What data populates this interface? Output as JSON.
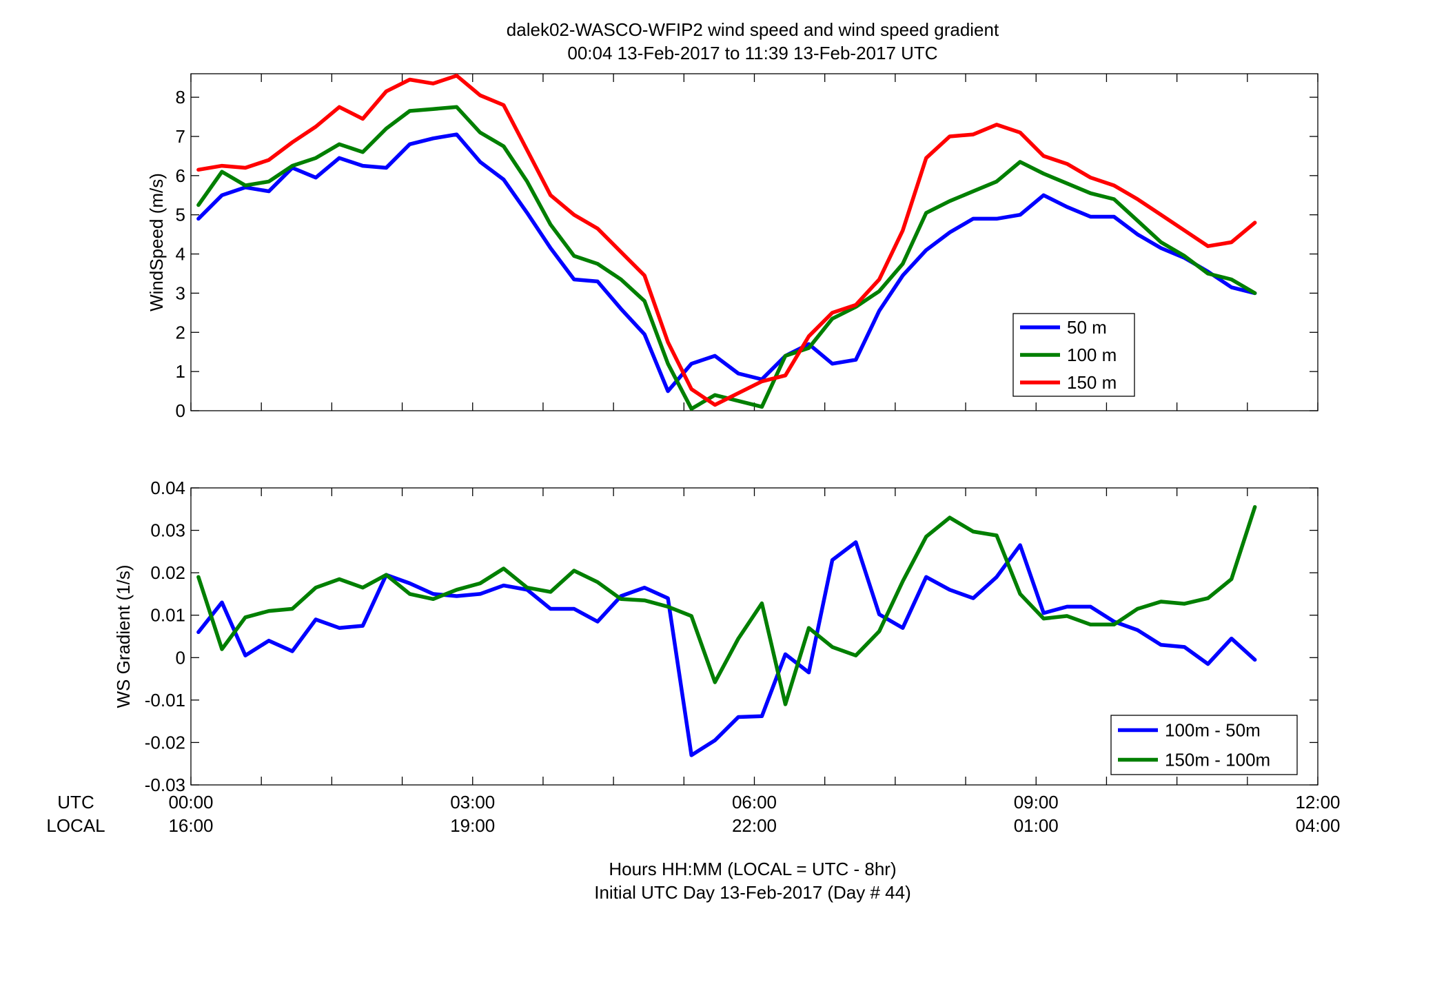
{
  "title_line1": "dalek02-WASCO-WFIP2  wind speed and wind speed gradient",
  "title_line2": "00:04 13-Feb-2017 to 11:39 13-Feb-2017  UTC",
  "row_label_utc": "UTC",
  "row_label_local": "LOCAL",
  "xlabel_line1": "Hours HH:MM  (LOCAL = UTC - 8hr)",
  "xlabel_line2": "Initial UTC Day 13-Feb-2017 (Day # 44)",
  "x_ticks_utc": [
    "00:00",
    "03:00",
    "06:00",
    "09:00",
    "12:00"
  ],
  "x_ticks_local": [
    "16:00",
    "19:00",
    "22:00",
    "01:00",
    "04:00"
  ],
  "chart_data": [
    {
      "type": "line",
      "xunit": "hours UTC",
      "xlim": [
        0,
        12
      ],
      "ylim": [
        0,
        8.6
      ],
      "yticks": [
        0,
        1,
        2,
        3,
        4,
        5,
        6,
        7,
        8
      ],
      "ytick_labels": [
        "0",
        "1",
        "2",
        "3",
        "4",
        "5",
        "6",
        "7",
        "8"
      ],
      "ylabel": "WindSpeed (m/s)",
      "legend_position": "right",
      "x": [
        0.08,
        0.33,
        0.58,
        0.83,
        1.08,
        1.33,
        1.58,
        1.83,
        2.08,
        2.33,
        2.58,
        2.83,
        3.08,
        3.33,
        3.58,
        3.83,
        4.08,
        4.33,
        4.58,
        4.83,
        5.08,
        5.33,
        5.58,
        5.83,
        6.08,
        6.33,
        6.58,
        6.83,
        7.08,
        7.33,
        7.58,
        7.83,
        8.08,
        8.33,
        8.58,
        8.83,
        9.08,
        9.33,
        9.58,
        9.83,
        10.08,
        10.33,
        10.58,
        10.83,
        11.08,
        11.33
      ],
      "series": [
        {
          "name": "50 m",
          "color": "#0000ff",
          "values": [
            4.9,
            5.5,
            5.7,
            5.6,
            6.2,
            5.95,
            6.45,
            6.25,
            6.2,
            6.8,
            6.95,
            7.05,
            6.35,
            5.9,
            5.05,
            4.15,
            3.35,
            3.3,
            2.6,
            1.95,
            0.5,
            1.2,
            1.4,
            0.95,
            0.8,
            1.4,
            1.7,
            1.2,
            1.3,
            2.55,
            3.45,
            4.1,
            4.55,
            4.9,
            4.9,
            5.0,
            5.5,
            5.2,
            4.95,
            4.95,
            4.5,
            4.15,
            3.9,
            3.55,
            3.15,
            3.0
          ]
        },
        {
          "name": "100 m",
          "color": "#007f00",
          "values": [
            5.25,
            6.1,
            5.75,
            5.85,
            6.25,
            6.45,
            6.8,
            6.6,
            7.2,
            7.65,
            7.7,
            7.75,
            7.1,
            6.75,
            5.85,
            4.75,
            3.95,
            3.75,
            3.35,
            2.8,
            1.2,
            0.05,
            0.4,
            0.25,
            0.1,
            1.4,
            1.6,
            2.35,
            2.65,
            3.05,
            3.75,
            5.05,
            5.35,
            5.6,
            5.85,
            6.35,
            6.05,
            5.8,
            5.55,
            5.4,
            4.85,
            4.3,
            3.95,
            3.5,
            3.35,
            3.0
          ]
        },
        {
          "name": "150 m",
          "color": "#ff0000",
          "values": [
            6.15,
            6.25,
            6.2,
            6.4,
            6.85,
            7.25,
            7.75,
            7.45,
            8.15,
            8.45,
            8.35,
            8.55,
            8.05,
            7.8,
            6.65,
            5.5,
            5.0,
            4.65,
            4.05,
            3.45,
            1.75,
            0.55,
            0.15,
            0.45,
            0.75,
            0.9,
            1.9,
            2.5,
            2.7,
            3.35,
            4.6,
            6.45,
            7.0,
            7.05,
            7.3,
            7.1,
            6.5,
            6.3,
            5.95,
            5.75,
            5.4,
            5.0,
            4.6,
            4.2,
            4.3,
            4.8
          ]
        }
      ]
    },
    {
      "type": "line",
      "xunit": "hours UTC",
      "xlim": [
        0,
        12
      ],
      "ylim": [
        -0.03,
        0.04
      ],
      "yticks": [
        -0.03,
        -0.02,
        -0.01,
        0,
        0.01,
        0.02,
        0.03,
        0.04
      ],
      "ytick_labels": [
        "-0.03",
        "-0.02",
        "-0.01",
        "0",
        "0.01",
        "0.02",
        "0.03",
        "0.04"
      ],
      "ylabel": "WS Gradient (1/s)",
      "legend_position": "bottom-right",
      "x": [
        0.08,
        0.33,
        0.58,
        0.83,
        1.08,
        1.33,
        1.58,
        1.83,
        2.08,
        2.33,
        2.58,
        2.83,
        3.08,
        3.33,
        3.58,
        3.83,
        4.08,
        4.33,
        4.58,
        4.83,
        5.08,
        5.33,
        5.58,
        5.83,
        6.08,
        6.33,
        6.58,
        6.83,
        7.08,
        7.33,
        7.58,
        7.83,
        8.08,
        8.33,
        8.58,
        8.83,
        9.08,
        9.33,
        9.58,
        9.83,
        10.08,
        10.33,
        10.58,
        10.83,
        11.08,
        11.33
      ],
      "series": [
        {
          "name": "100m - 50m",
          "color": "#0000ff",
          "values": [
            0.006,
            0.013,
            0.0005,
            0.004,
            0.0015,
            0.009,
            0.007,
            0.0075,
            0.0195,
            0.0175,
            0.015,
            0.0145,
            0.015,
            0.017,
            0.016,
            0.0115,
            0.0115,
            0.0085,
            0.0145,
            0.0165,
            0.014,
            -0.023,
            -0.0195,
            -0.014,
            -0.0138,
            0.0008,
            -0.0035,
            0.023,
            0.0272,
            0.0102,
            0.007,
            0.019,
            0.016,
            0.014,
            0.019,
            0.0265,
            0.0105,
            0.012,
            0.012,
            0.0085,
            0.0065,
            0.003,
            0.0025,
            -0.0015,
            0.0045,
            -0.0005
          ]
        },
        {
          "name": "150m - 100m",
          "color": "#007f00",
          "values": [
            0.019,
            0.002,
            0.0095,
            0.011,
            0.0115,
            0.0165,
            0.0185,
            0.0165,
            0.0195,
            0.015,
            0.0138,
            0.016,
            0.0175,
            0.021,
            0.0165,
            0.0155,
            0.0205,
            0.0178,
            0.0138,
            0.0135,
            0.012,
            0.0098,
            -0.0058,
            0.0045,
            0.0128,
            -0.011,
            0.007,
            0.0025,
            0.0005,
            0.0062,
            0.018,
            0.0285,
            0.033,
            0.0297,
            0.0288,
            0.015,
            0.0092,
            0.0098,
            0.0078,
            0.0078,
            0.0115,
            0.0132,
            0.0127,
            0.014,
            0.0185,
            0.0355
          ]
        }
      ]
    }
  ]
}
